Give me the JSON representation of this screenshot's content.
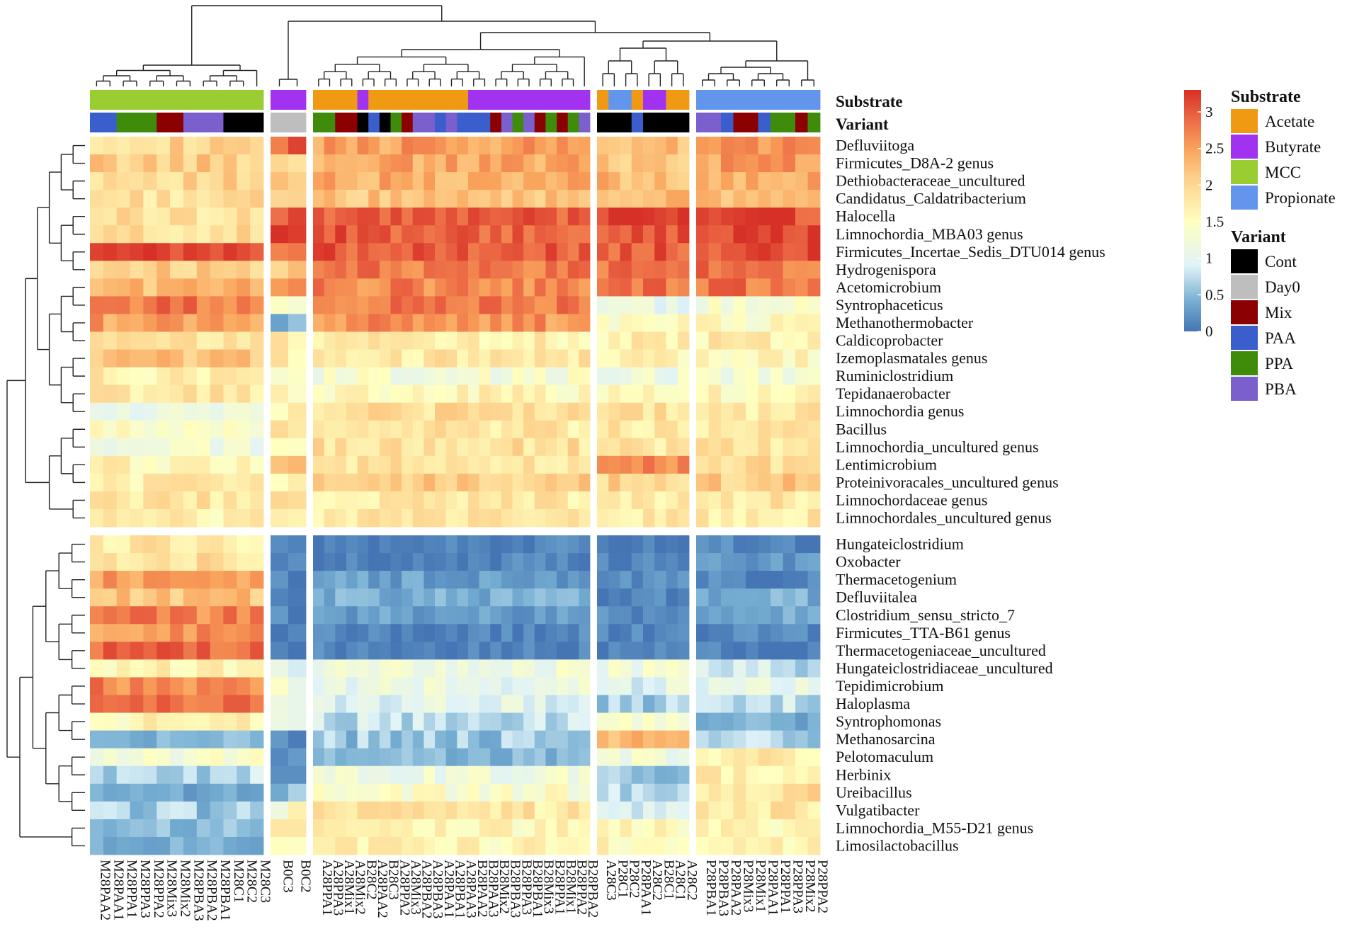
{
  "chart_data": {
    "type": "heatmap",
    "title": "",
    "rows": [
      "Defluviitoga",
      "Firmicutes_D8A-2 genus",
      "Dethiobacteraceae_uncultured",
      "Candidatus_Caldatribacterium",
      "Halocella",
      "Limnochordia_MBA03 genus",
      "Firmicutes_Incertae_Sedis_DTU014 genus",
      "Hydrogenispora",
      "Acetomicrobium",
      "Syntrophaceticus",
      "Methanothermobacter",
      "Caldicoprobacter",
      "Izemoplasmatales genus",
      "Ruminiclostridium",
      "Tepidanaerobacter",
      "Limnochordia genus",
      "Bacillus",
      "Limnochordia_uncultured genus",
      "Lentimicrobium",
      "Proteinivoracales_uncultured genus",
      "Limnochordaceae genus",
      "Limnochordales_uncultured genus",
      "Hungateiclostridium",
      "Oxobacter",
      "Thermacetogenium",
      "Defluviitalea",
      "Clostridium_sensu_stricto_7",
      "Firmicutes_TTA-B61 genus",
      "Thermacetogeniaceae_uncultured",
      "Hungateiclostridiaceae_uncultured",
      "Tepidimicrobium",
      "Haloplasma",
      "Syntrophomonas",
      "Methanosarcina",
      "Pelotomaculum",
      "Herbinix",
      "Ureibacillus",
      "Vulgatibacter",
      "Limnochordia_M55-D21 genus",
      "Limosilactobacillus"
    ],
    "row_split_after": 22,
    "column_groups": [
      {
        "columns": [
          "M28PAA2",
          "M28PAA1",
          "M28PPA1",
          "M28PPA3",
          "M28PPA2",
          "M28Mix3",
          "M28Mix2",
          "M28PBA3",
          "M28PBA2",
          "M28PBA1",
          "M28C1",
          "M28C2",
          "M28C3"
        ],
        "substrate": [
          "MCC",
          "MCC",
          "MCC",
          "MCC",
          "MCC",
          "MCC",
          "MCC",
          "MCC",
          "MCC",
          "MCC",
          "MCC",
          "MCC",
          "MCC"
        ],
        "variant": [
          "PAA",
          "PAA",
          "PPA",
          "PPA",
          "PPA",
          "Mix",
          "Mix",
          "PBA",
          "PBA",
          "PBA",
          "Cont",
          "Cont",
          "Cont"
        ]
      },
      {
        "columns": [
          "B0C3",
          "B0C2"
        ],
        "substrate": [
          "Butyrate",
          "Butyrate"
        ],
        "variant": [
          "Day0",
          "Day0"
        ]
      },
      {
        "columns": [
          "A28PPA1",
          "A28PPA3",
          "A28Mix1",
          "A28Mix2",
          "B28C2",
          "A28PAA2",
          "B28C3",
          "A28PPA2",
          "A28Mix3",
          "A28PBA2",
          "A28PBA3",
          "A28PAA1",
          "A28PBA1",
          "A28PAA3",
          "B28PAA2",
          "B28PAA3",
          "B28Mix2",
          "B28PBA3",
          "B28PPA3",
          "B28PBA1",
          "B28Mix3",
          "B28PPA1",
          "B28Mix1",
          "B28PPA2",
          "B28PBA2"
        ],
        "substrate": [
          "Acetate",
          "Acetate",
          "Acetate",
          "Acetate",
          "Butyrate",
          "Acetate",
          "Acetate",
          "Acetate",
          "Acetate",
          "Acetate",
          "Acetate",
          "Acetate",
          "Acetate",
          "Acetate",
          "Butyrate",
          "Butyrate",
          "Butyrate",
          "Butyrate",
          "Butyrate",
          "Butyrate",
          "Butyrate",
          "Butyrate",
          "Butyrate",
          "Butyrate",
          "Butyrate"
        ],
        "variant": [
          "PPA",
          "PPA",
          "Mix",
          "Mix",
          "Cont",
          "PAA",
          "Cont",
          "PPA",
          "Mix",
          "PBA",
          "PBA",
          "PAA",
          "PBA",
          "PAA",
          "PAA",
          "PAA",
          "Mix",
          "PBA",
          "PPA",
          "PBA",
          "Mix",
          "PPA",
          "Mix",
          "PPA",
          "PBA"
        ]
      },
      {
        "columns": [
          "A28C3",
          "P28C1",
          "P28C2",
          "P28PAA1",
          "A28C2",
          "B28C1",
          "A28C1",
          "A28C2"
        ],
        "substrate": [
          "Acetate",
          "Propionate",
          "Propionate",
          "Acetate",
          "Butyrate",
          "Butyrate",
          "Acetate",
          "Acetate"
        ],
        "variant": [
          "Cont",
          "Cont",
          "Cont",
          "PAA",
          "Cont",
          "Cont",
          "Cont",
          "Cont"
        ]
      },
      {
        "columns": [
          "P28PBA1",
          "P28PBA3",
          "P28PAA2",
          "P28Mix3",
          "P28Mix1",
          "P28PAA1",
          "P28PPA1",
          "P28PPA3",
          "P28Mix2",
          "P28PPA2"
        ],
        "substrate": [
          "Propionate",
          "Propionate",
          "Propionate",
          "Propionate",
          "Propionate",
          "Propionate",
          "Propionate",
          "Propionate",
          "Propionate",
          "Propionate"
        ],
        "variant": [
          "PBA",
          "PBA",
          "PAA",
          "Mix",
          "Mix",
          "PAA",
          "PPA",
          "PPA",
          "Mix",
          "PPA"
        ]
      }
    ],
    "group_profiles": [
      [
        2.0,
        2.1,
        2.0,
        1.9,
        1.9,
        1.9,
        3.1,
        2.1,
        2.3,
        2.8,
        2.5,
        1.8,
        2.2,
        1.7,
        1.8,
        1.1,
        1.4,
        1.2,
        1.6,
        1.7,
        1.8,
        1.7,
        1.8,
        1.9,
        2.5,
        2.2,
        2.7,
        2.6,
        2.9,
        1.6,
        2.7,
        2.8,
        1.6,
        0.5,
        1.3,
        0.7,
        0.3,
        0.6,
        0.5,
        0.4
      ],
      [
        2.9,
        1.9,
        2.0,
        1.8,
        3.1,
        3.1,
        3.0,
        2.2,
        2.6,
        1.5,
        0.4,
        1.7,
        1.7,
        1.3,
        1.6,
        1.7,
        1.7,
        1.7,
        2.2,
        1.5,
        1.8,
        1.7,
        0.1,
        0.1,
        0.1,
        0.1,
        0.1,
        0.1,
        0.1,
        1.1,
        1.2,
        1.2,
        1.2,
        0.1,
        0.1,
        0.1,
        0.6,
        1.4,
        1.9,
        1.6
      ],
      [
        2.5,
        2.4,
        2.4,
        2.2,
        3.0,
        3.0,
        3.0,
        2.8,
        2.7,
        2.8,
        2.6,
        1.7,
        1.8,
        1.3,
        1.6,
        1.9,
        1.8,
        1.9,
        1.9,
        2.1,
        1.8,
        1.8,
        0.1,
        0.1,
        0.3,
        0.4,
        0.3,
        0.1,
        0.1,
        1.2,
        1.1,
        1.0,
        0.8,
        0.6,
        0.5,
        1.2,
        1.4,
        1.8,
        1.6,
        1.6
      ],
      [
        2.3,
        2.2,
        2.3,
        2.2,
        3.2,
        3.0,
        3.0,
        2.8,
        2.8,
        1.1,
        1.5,
        1.7,
        1.6,
        1.2,
        1.5,
        1.9,
        1.8,
        1.8,
        2.7,
        2.0,
        1.8,
        1.8,
        0.1,
        0.1,
        0.2,
        0.1,
        0.2,
        0.1,
        0.1,
        1.2,
        1.0,
        0.6,
        1.3,
        2.3,
        1.2,
        0.6,
        0.8,
        0.9,
        1.6,
        1.6
      ],
      [
        2.6,
        2.5,
        2.4,
        2.3,
        3.1,
        3.1,
        3.1,
        2.8,
        2.8,
        1.3,
        1.5,
        1.7,
        1.6,
        1.3,
        1.6,
        1.8,
        1.8,
        1.8,
        1.9,
        2.1,
        1.8,
        1.8,
        0.1,
        0.2,
        0.1,
        0.4,
        0.4,
        0.1,
        0.1,
        0.8,
        1.0,
        0.8,
        0.4,
        0.7,
        1.7,
        1.7,
        1.9,
        1.8,
        1.6,
        1.6
      ]
    ],
    "color_scale": {
      "min": 0,
      "max": 3.3,
      "stops": [
        [
          0.0,
          "#4575b4"
        ],
        [
          0.4,
          "#74add1"
        ],
        [
          0.9,
          "#e0f3f8"
        ],
        [
          1.5,
          "#ffffbf"
        ],
        [
          2.1,
          "#fdd08a"
        ],
        [
          2.5,
          "#f9a25b"
        ],
        [
          2.9,
          "#ec6a45"
        ],
        [
          3.3,
          "#d73027"
        ]
      ],
      "ticks": [
        0,
        0.5,
        1,
        1.5,
        2,
        2.5,
        3
      ],
      "tick_labels": [
        "0",
        "0.5",
        "1",
        "1.5",
        "2",
        "2.5",
        "3"
      ]
    },
    "annotation_rows": {
      "substrate_label": "Substrate",
      "variant_label": "Variant"
    },
    "legend": {
      "substrate": {
        "title": "Substrate",
        "items": [
          {
            "label": "Acetate",
            "color": "#f09a14"
          },
          {
            "label": "Butyrate",
            "color": "#a032f0"
          },
          {
            "label": "MCC",
            "color": "#9acd32"
          },
          {
            "label": "Propionate",
            "color": "#6495ed"
          }
        ]
      },
      "variant": {
        "title": "Variant",
        "items": [
          {
            "label": "Cont",
            "color": "#000000"
          },
          {
            "label": "Day0",
            "color": "#bebebe"
          },
          {
            "label": "Mix",
            "color": "#8b0000"
          },
          {
            "label": "PAA",
            "color": "#3a5fcd"
          },
          {
            "label": "PPA",
            "color": "#3f8b0a"
          },
          {
            "label": "PBA",
            "color": "#7a5fcd"
          }
        ]
      }
    }
  }
}
